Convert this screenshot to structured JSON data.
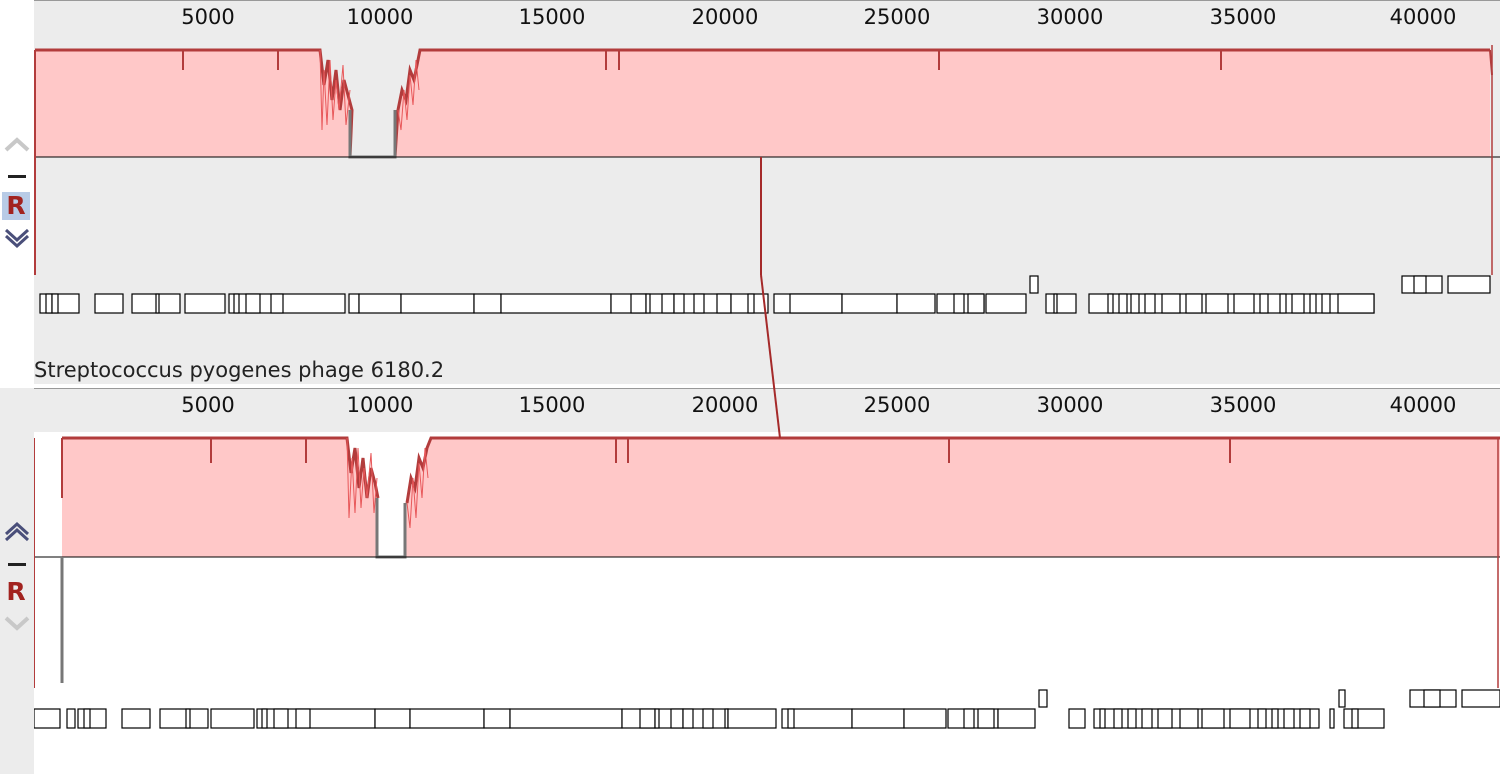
{
  "app": "Mauve genome alignment viewer",
  "colors": {
    "lcb_fill": "#ffc8c8",
    "lcb_stroke": "#b23c3c",
    "lcb_line": "#a52a2a",
    "gap": "#777777",
    "panel_bg_selected": "#ececec",
    "panel_bg": "#ffffff",
    "r_label": "#a2231f"
  },
  "icons": {
    "move_up": "chevron-up-icon",
    "hide": "minus-icon",
    "reverse": "R",
    "move_down": "chevron-down-icon"
  },
  "genomes": [
    {
      "name": "",
      "ruler_ticks": [
        "5000",
        "10000",
        "15000",
        "20000",
        "25000",
        "30000",
        "35000",
        "40000"
      ],
      "reverse_label": "R"
    },
    {
      "name": "Streptococcus pyogenes phage 6180.2",
      "ruler_ticks": [
        "5000",
        "10000",
        "15000",
        "20000",
        "25000",
        "30000",
        "35000",
        "40000"
      ],
      "reverse_label": "R"
    }
  ]
}
